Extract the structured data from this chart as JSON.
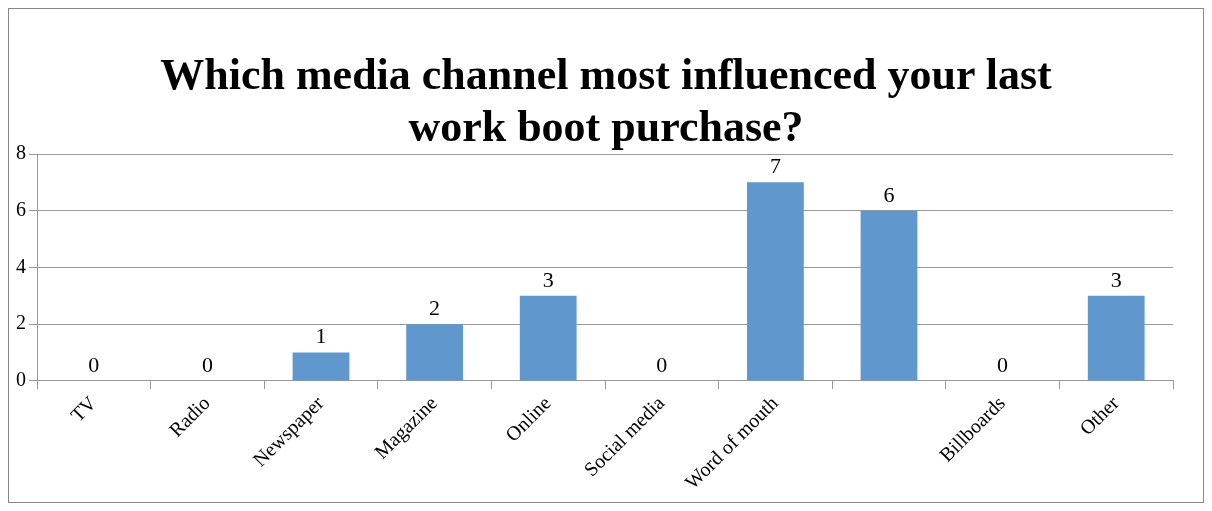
{
  "chart_data": {
    "type": "bar",
    "title": "Which media channel most influenced your last work boot purchase?",
    "categories": [
      "TV",
      "Radio",
      "Newspaper",
      "Magazine",
      "Online",
      "Social media",
      "Word of mouth",
      null,
      "Billboards",
      "Other"
    ],
    "values": [
      0,
      0,
      1,
      2,
      3,
      0,
      7,
      6,
      0,
      3
    ],
    "color": "#6097cd",
    "ylim": [
      0,
      8
    ],
    "yticks": [
      0,
      2,
      4,
      6,
      8
    ],
    "grid": "y",
    "data_labels": true,
    "legend": false
  }
}
